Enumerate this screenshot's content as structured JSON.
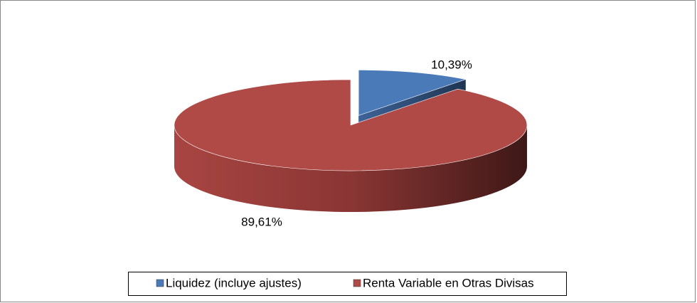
{
  "chart_data": {
    "type": "pie",
    "categories": [
      "Liquidez (incluye ajustes)",
      "Renta Variable en Otras Divisas"
    ],
    "values": [
      10.39,
      89.61
    ],
    "value_labels": [
      "10,39%",
      "89,61%"
    ],
    "colors": [
      "#4a7ab8",
      "#b04a46"
    ],
    "legend": "bottom"
  }
}
